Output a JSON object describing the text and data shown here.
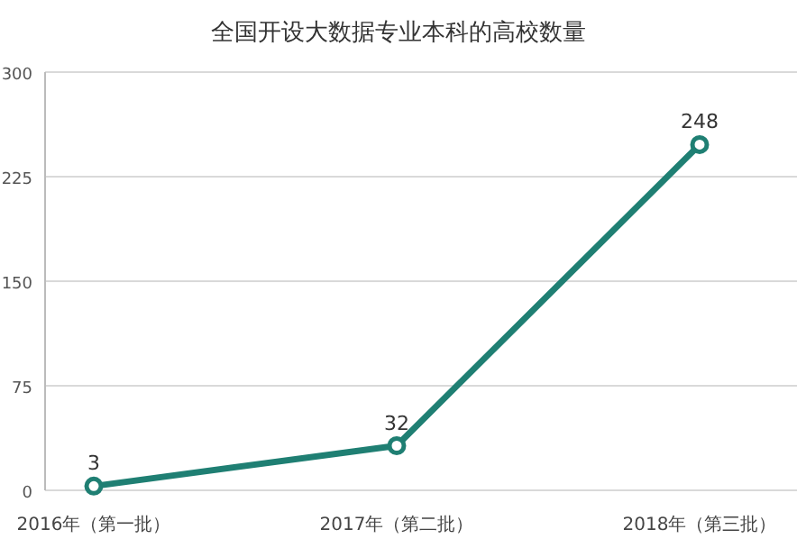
{
  "chart_data": {
    "type": "line",
    "title": "全国开设大数据专业本科的高校数量",
    "categories": [
      "2016年（第一批）",
      "2017年（第二批）",
      "2018年（第三批）"
    ],
    "series": [
      {
        "color": "#1f7f73",
        "values": [
          3,
          32,
          248
        ]
      }
    ],
    "ylim": [
      0,
      300
    ],
    "yticks": [
      0,
      75,
      150,
      225,
      300
    ],
    "grid": "y",
    "marker": "circle",
    "line_style": "solid",
    "data_labels": true
  }
}
